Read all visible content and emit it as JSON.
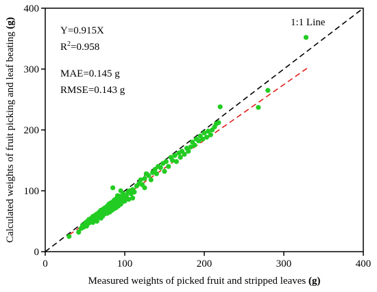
{
  "chart_data": {
    "type": "scatter",
    "xlabel": "Measured weights of picked fruit and stripped leaves",
    "xlabel_unit": "(g)",
    "ylabel": "Calculated weights of fruit picking and leaf beating",
    "ylabel_unit": "(g)",
    "xlim": [
      0,
      400
    ],
    "ylim": [
      0,
      400
    ],
    "xticks": [
      0,
      100,
      200,
      300,
      400
    ],
    "yticks": [
      0,
      100,
      200,
      300,
      400
    ],
    "grid": false,
    "annotations": {
      "equation": "Y=0.915X",
      "r2_base": "R",
      "r2_sup": "2",
      "r2_value": "=0.958",
      "mae": "MAE=0.145 g",
      "rmse": "RMSE=0.143 g",
      "one_to_one_label": "1:1 Line"
    },
    "lines": [
      {
        "kind": "one-to-one",
        "color": "#000000",
        "dash": true,
        "x": [
          0,
          400
        ],
        "y": [
          0,
          400
        ]
      },
      {
        "kind": "regression",
        "color": "#e0201b",
        "dash": true,
        "slope": 0.915,
        "x": [
          30,
          330
        ],
        "y": [
          27.45,
          301.95
        ]
      }
    ],
    "point_color": "#22cc22",
    "points": [
      [
        30,
        25
      ],
      [
        42,
        32
      ],
      [
        45,
        38
      ],
      [
        47,
        43
      ],
      [
        48,
        40
      ],
      [
        50,
        45
      ],
      [
        51,
        48
      ],
      [
        52,
        42
      ],
      [
        53,
        50
      ],
      [
        55,
        47
      ],
      [
        55,
        53
      ],
      [
        57,
        50
      ],
      [
        58,
        55
      ],
      [
        59,
        52
      ],
      [
        60,
        58
      ],
      [
        60,
        48
      ],
      [
        62,
        56
      ],
      [
        63,
        60
      ],
      [
        64,
        53
      ],
      [
        65,
        62
      ],
      [
        65,
        50
      ],
      [
        67,
        57
      ],
      [
        68,
        65
      ],
      [
        68,
        60
      ],
      [
        70,
        55
      ],
      [
        70,
        68
      ],
      [
        71,
        63
      ],
      [
        72,
        58
      ],
      [
        73,
        70
      ],
      [
        74,
        65
      ],
      [
        75,
        72
      ],
      [
        75,
        62
      ],
      [
        77,
        68
      ],
      [
        78,
        75
      ],
      [
        78,
        63
      ],
      [
        80,
        70
      ],
      [
        80,
        78
      ],
      [
        81,
        65
      ],
      [
        82,
        80
      ],
      [
        83,
        73
      ],
      [
        84,
        68
      ],
      [
        85,
        82
      ],
      [
        85,
        75
      ],
      [
        86,
        70
      ],
      [
        87,
        85
      ],
      [
        88,
        78
      ],
      [
        89,
        72
      ],
      [
        90,
        88
      ],
      [
        90,
        80
      ],
      [
        91,
        92
      ],
      [
        92,
        75
      ],
      [
        93,
        83
      ],
      [
        94,
        90
      ],
      [
        95,
        78
      ],
      [
        96,
        86
      ],
      [
        97,
        82
      ],
      [
        98,
        95
      ],
      [
        99,
        88
      ],
      [
        100,
        90
      ],
      [
        100,
        83
      ],
      [
        102,
        92
      ],
      [
        104,
        98
      ],
      [
        105,
        86
      ],
      [
        106,
        100
      ],
      [
        108,
        95
      ],
      [
        110,
        102
      ],
      [
        112,
        98
      ],
      [
        115,
        108
      ],
      [
        118,
        112
      ],
      [
        120,
        118
      ],
      [
        122,
        110
      ],
      [
        125,
        120
      ],
      [
        127,
        128
      ],
      [
        130,
        125
      ],
      [
        133,
        118
      ],
      [
        135,
        130
      ],
      [
        138,
        135
      ],
      [
        140,
        128
      ],
      [
        142,
        140
      ],
      [
        145,
        138
      ],
      [
        148,
        145
      ],
      [
        150,
        132
      ],
      [
        152,
        148
      ],
      [
        155,
        140
      ],
      [
        158,
        155
      ],
      [
        160,
        150
      ],
      [
        163,
        158
      ],
      [
        165,
        148
      ],
      [
        168,
        162
      ],
      [
        170,
        155
      ],
      [
        172,
        165
      ],
      [
        175,
        160
      ],
      [
        178,
        170
      ],
      [
        180,
        165
      ],
      [
        183,
        172
      ],
      [
        185,
        180
      ],
      [
        188,
        175
      ],
      [
        190,
        185
      ],
      [
        193,
        182
      ],
      [
        195,
        190
      ],
      [
        198,
        185
      ],
      [
        200,
        195
      ],
      [
        203,
        188
      ],
      [
        205,
        198
      ],
      [
        208,
        192
      ],
      [
        210,
        200
      ],
      [
        213,
        205
      ],
      [
        215,
        210
      ],
      [
        218,
        212
      ],
      [
        220,
        238
      ],
      [
        268,
        237
      ],
      [
        280,
        265
      ],
      [
        328,
        352
      ],
      [
        85,
        105
      ],
      [
        95,
        100
      ],
      [
        110,
        88
      ],
      [
        125,
        105
      ]
    ]
  }
}
